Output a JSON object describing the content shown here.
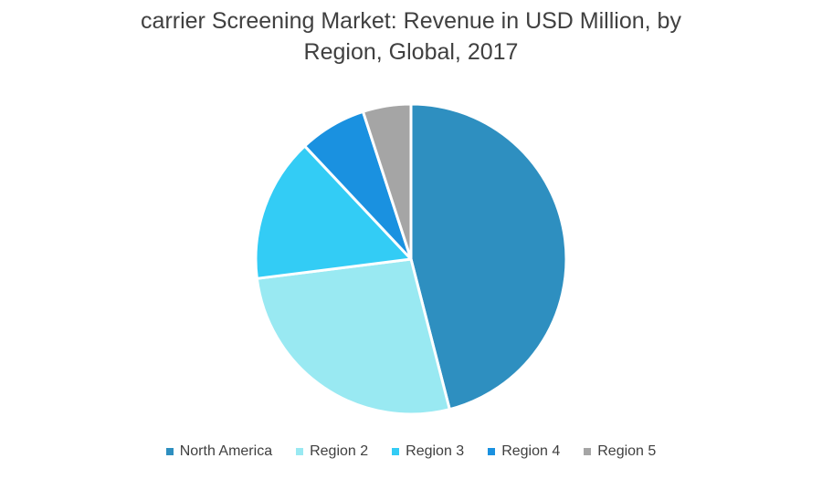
{
  "chart_data": {
    "type": "pie",
    "title_line1": "carrier Screening Market: Revenue in USD Million, by",
    "title_line2": "Region, Global, 2017",
    "categories": [
      "North America",
      "Region 2",
      "Region 3",
      "Region 4",
      "Region 5"
    ],
    "values": [
      46,
      27,
      15,
      7,
      5
    ],
    "colors": [
      "#2e8fc0",
      "#99e9f2",
      "#33ccf5",
      "#1a91e0",
      "#a5a5a5"
    ],
    "start_angle": "12 o'clock",
    "direction": "clockwise",
    "legend_position": "bottom"
  }
}
